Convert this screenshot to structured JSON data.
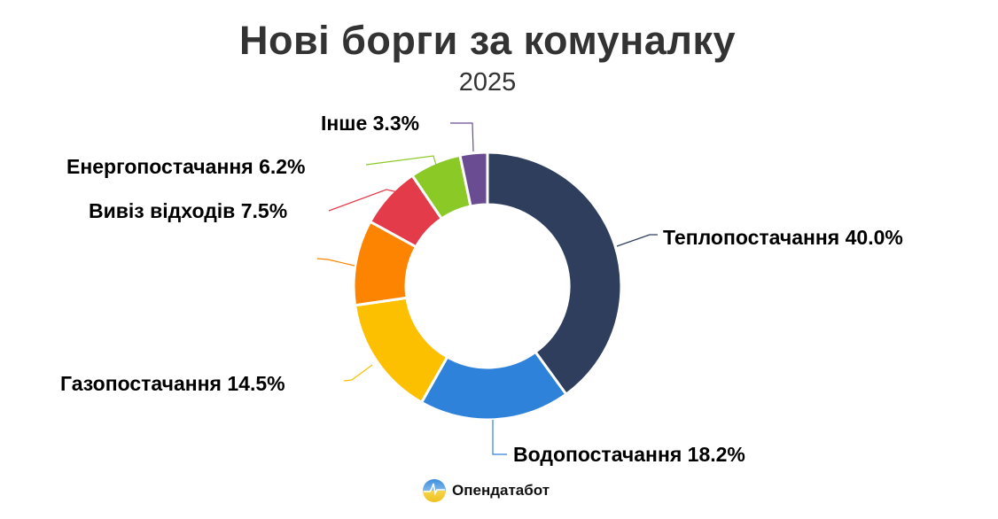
{
  "header": {
    "title": "Нові борги за комуналку",
    "subtitle": "2025"
  },
  "branding": {
    "logo_text": "Опендатабот"
  },
  "chart_data": {
    "type": "pie",
    "variant": "donut",
    "title": "Нові борги за комуналку",
    "subtitle": "2025",
    "start_angle": "12 o'clock, clockwise",
    "categories": [
      "Теплопостачання",
      "Водопостачання",
      "Газопостачання",
      "",
      "Вивіз відходів",
      "Енергопостачання",
      "Інше"
    ],
    "values": [
      40.0,
      18.2,
      14.5,
      10.3,
      7.5,
      6.2,
      3.3
    ],
    "unit": "%",
    "colors": [
      "#2f3e5c",
      "#2e82d9",
      "#fcc000",
      "#fc8400",
      "#e43b4a",
      "#8ac926",
      "#6a4c93"
    ],
    "labels": [
      {
        "name": "Теплопостачання",
        "value": "40.0%"
      },
      {
        "name": "Водопостачання",
        "value": "18.2%"
      },
      {
        "name": "Газопостачання",
        "value": "14.5%"
      },
      {
        "name": "",
        "value": ""
      },
      {
        "name": "Вивіз відходів",
        "value": "7.5%"
      },
      {
        "name": "Енергопостачання",
        "value": "6.2%"
      },
      {
        "name": "Інше",
        "value": "3.3%"
      }
    ],
    "legend": "none (outside data labels with leader lines)"
  }
}
